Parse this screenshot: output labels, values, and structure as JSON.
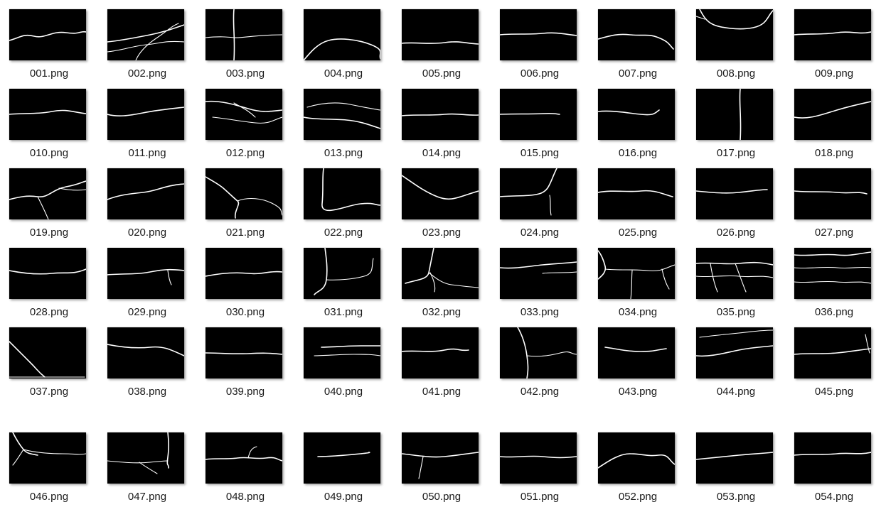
{
  "files": [
    {
      "name": "001.png"
    },
    {
      "name": "002.png"
    },
    {
      "name": "003.png"
    },
    {
      "name": "004.png"
    },
    {
      "name": "005.png"
    },
    {
      "name": "006.png"
    },
    {
      "name": "007.png"
    },
    {
      "name": "008.png"
    },
    {
      "name": "009.png"
    },
    {
      "name": "010.png"
    },
    {
      "name": "011.png"
    },
    {
      "name": "012.png"
    },
    {
      "name": "013.png"
    },
    {
      "name": "014.png"
    },
    {
      "name": "015.png"
    },
    {
      "name": "016.png"
    },
    {
      "name": "017.png"
    },
    {
      "name": "018.png"
    },
    {
      "name": "019.png"
    },
    {
      "name": "020.png"
    },
    {
      "name": "021.png"
    },
    {
      "name": "022.png"
    },
    {
      "name": "023.png"
    },
    {
      "name": "024.png"
    },
    {
      "name": "025.png"
    },
    {
      "name": "026.png"
    },
    {
      "name": "027.png"
    },
    {
      "name": "028.png"
    },
    {
      "name": "029.png"
    },
    {
      "name": "030.png"
    },
    {
      "name": "031.png"
    },
    {
      "name": "032.png"
    },
    {
      "name": "033.png"
    },
    {
      "name": "034.png"
    },
    {
      "name": "035.png"
    },
    {
      "name": "036.png"
    },
    {
      "name": "037.png"
    },
    {
      "name": "038.png"
    },
    {
      "name": "039.png"
    },
    {
      "name": "040.png"
    },
    {
      "name": "041.png"
    },
    {
      "name": "042.png"
    },
    {
      "name": "043.png"
    },
    {
      "name": "044.png"
    },
    {
      "name": "045.png"
    },
    {
      "name": "046.png"
    },
    {
      "name": "047.png"
    },
    {
      "name": "048.png"
    },
    {
      "name": "049.png"
    },
    {
      "name": "050.png"
    },
    {
      "name": "051.png"
    },
    {
      "name": "052.png"
    },
    {
      "name": "053.png"
    },
    {
      "name": "054.png"
    }
  ],
  "colors": {
    "background": "#ffffff",
    "thumbnail": "#000000",
    "crack": "#ffffff",
    "label": "#1a1a1a"
  }
}
